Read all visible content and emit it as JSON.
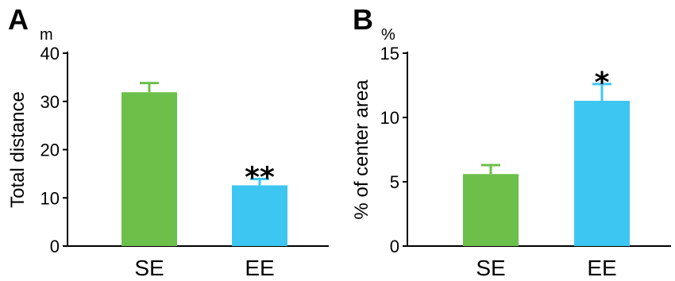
{
  "chart_data": [
    {
      "type": "bar",
      "panel": "A",
      "unit": "m",
      "ylabel": "Total distance",
      "categories": [
        "SE",
        "EE"
      ],
      "values": [
        31.9,
        12.6
      ],
      "errors": [
        1.9,
        1.3
      ],
      "significance": [
        "",
        "**"
      ],
      "colors": [
        "#6cc04a",
        "#3ec6f2"
      ],
      "ylim": [
        0,
        40
      ],
      "yticks": [
        0,
        10,
        20,
        30,
        40
      ]
    },
    {
      "type": "bar",
      "panel": "B",
      "unit": "%",
      "ylabel": "% of center area",
      "categories": [
        "SE",
        "EE"
      ],
      "values": [
        5.6,
        11.3
      ],
      "errors": [
        0.7,
        1.3
      ],
      "significance": [
        "",
        "*"
      ],
      "colors": [
        "#6cc04a",
        "#3ec6f2"
      ],
      "ylim": [
        0,
        15
      ],
      "yticks": [
        0,
        5,
        10,
        15
      ]
    }
  ]
}
